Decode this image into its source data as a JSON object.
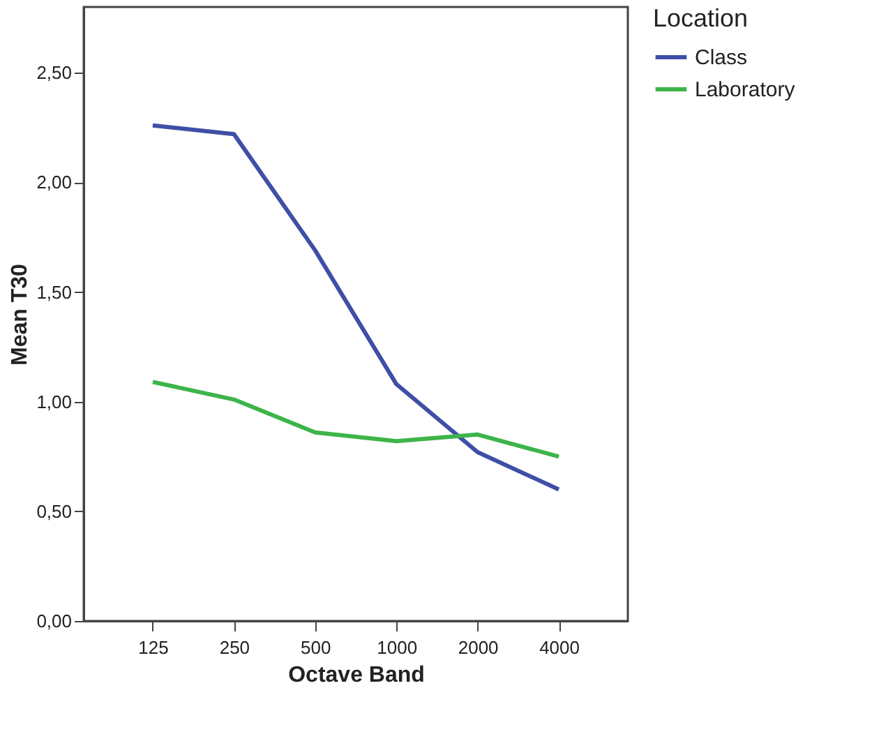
{
  "chart_data": {
    "type": "line",
    "xlabel": "Octave Band",
    "ylabel": "Mean T30",
    "legend_title": "Location",
    "categories": [
      "125",
      "250",
      "500",
      "1000",
      "2000",
      "4000"
    ],
    "series": [
      {
        "name": "Class",
        "color": "#3f4ea6",
        "values": [
          2.26,
          2.22,
          1.69,
          1.08,
          0.77,
          0.6
        ]
      },
      {
        "name": "Laboratory",
        "color": "#3db44a",
        "values": [
          1.09,
          1.01,
          0.86,
          0.82,
          0.85,
          0.75
        ]
      }
    ],
    "ylim": [
      0,
      2.8
    ],
    "yticks": [
      {
        "value": 0,
        "label": "0,00"
      },
      {
        "value": 0.5,
        "label": "0,50"
      },
      {
        "value": 1,
        "label": "1,00"
      },
      {
        "value": 1.5,
        "label": "1,50"
      },
      {
        "value": 2,
        "label": "2,00"
      },
      {
        "value": 2.5,
        "label": "2,50"
      }
    ],
    "grid": false,
    "legend": "top right",
    "marker": "none",
    "line_style": "solid"
  }
}
